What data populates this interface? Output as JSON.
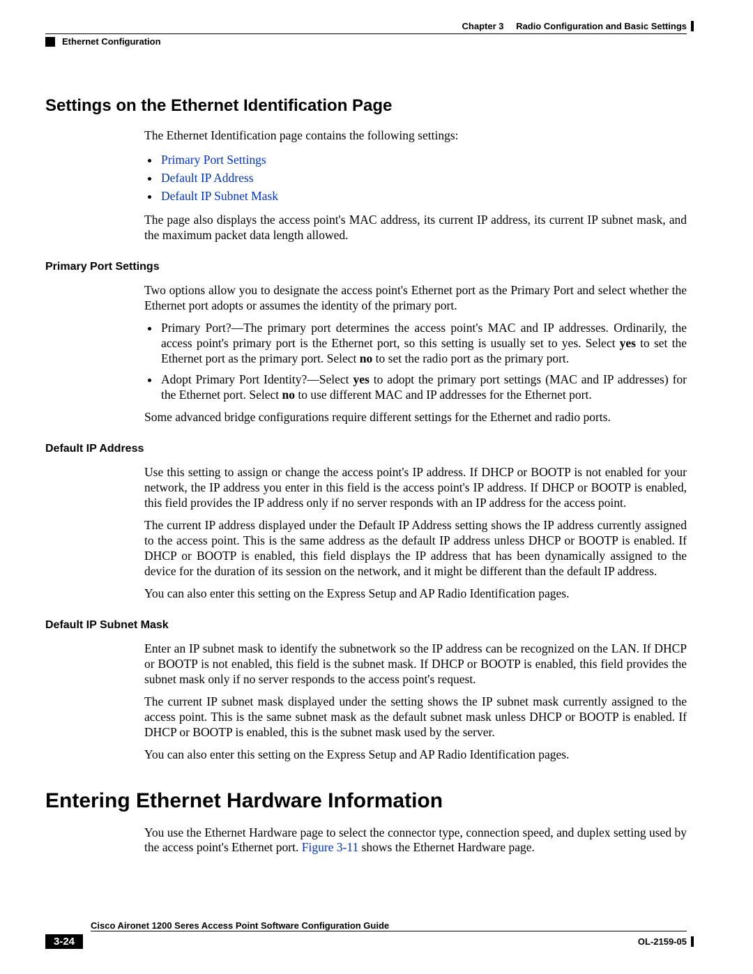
{
  "header": {
    "chapter_label": "Chapter 3",
    "chapter_title": "Radio Configuration and Basic Settings",
    "section": "Ethernet Configuration"
  },
  "section1": {
    "title": "Settings on the Ethernet Identification Page",
    "intro": "The Ethernet Identification page contains the following settings:",
    "links": {
      "l1": "Primary Port Settings",
      "l2": "Default IP Address",
      "l3": "Default IP Subnet Mask"
    },
    "after_links": "The page also displays the access point's MAC address, its current IP address, its current IP subnet mask, and the maximum packet data length allowed."
  },
  "primary_port": {
    "title": "Primary Port Settings",
    "p1": "Two options allow you to designate the access point's Ethernet port as the Primary Port and select whether the Ethernet port adopts or assumes the identity of the primary port.",
    "b1a": "Primary Port?—The primary port determines the access point's MAC and IP addresses. Ordinarily, the access point's primary port is the Ethernet port, so this setting is usually set to yes. Select ",
    "b1_yes": "yes",
    "b1b": " to set the Ethernet port as the primary port. Select ",
    "b1_no": "no",
    "b1c": " to set the radio port as the primary port.",
    "b2a": "Adopt Primary Port Identity?—Select ",
    "b2_yes": "yes",
    "b2b": " to adopt the primary port settings (MAC and IP addresses) for the Ethernet port. Select ",
    "b2_no": "no",
    "b2c": " to use different MAC and IP addresses for the Ethernet port.",
    "p2": "Some advanced bridge configurations require different settings for the Ethernet and radio ports."
  },
  "default_ip": {
    "title": "Default IP Address",
    "p1": "Use this setting to assign or change the access point's IP address. If DHCP or BOOTP is not enabled for your network, the IP address you enter in this field is the access point's IP address. If DHCP or BOOTP is enabled, this field provides the IP address only if no server responds with an IP address for the access point.",
    "p2": "The current IP address displayed under the Default IP Address setting shows the IP address currently assigned to the access point. This is the same address as the default IP address unless DHCP or BOOTP is enabled. If DHCP or BOOTP is enabled, this field displays the IP address that has been dynamically assigned to the device for the duration of its session on the network, and it might be different than the default IP address.",
    "p3": "You can also enter this setting on the Express Setup and AP Radio Identification pages."
  },
  "subnet": {
    "title": "Default IP Subnet Mask",
    "p1": "Enter an IP subnet mask to identify the subnetwork so the IP address can be recognized on the LAN. If DHCP or BOOTP is not enabled, this field is the subnet mask. If DHCP or BOOTP is enabled, this field provides the subnet mask only if no server responds to the access point's request.",
    "p2": "The current IP subnet mask displayed under the setting shows the IP subnet mask currently assigned to the access point. This is the same subnet mask as the default subnet mask unless DHCP or BOOTP is enabled. If DHCP or BOOTP is enabled, this is the subnet mask used by the server.",
    "p3": "You can also enter this setting on the Express Setup and AP Radio Identification pages."
  },
  "section2": {
    "title": "Entering Ethernet Hardware Information",
    "p1a": "You use the Ethernet Hardware page to select the connector type, connection speed, and duplex setting used by the access point's Ethernet port. ",
    "fig_link": "Figure 3-11",
    "p1b": " shows the Ethernet Hardware page."
  },
  "footer": {
    "guide_title": "Cisco Aironet 1200 Seres Access Point Software Configuration Guide",
    "page_num": "3-24",
    "doc_id": "OL-2159-05"
  }
}
